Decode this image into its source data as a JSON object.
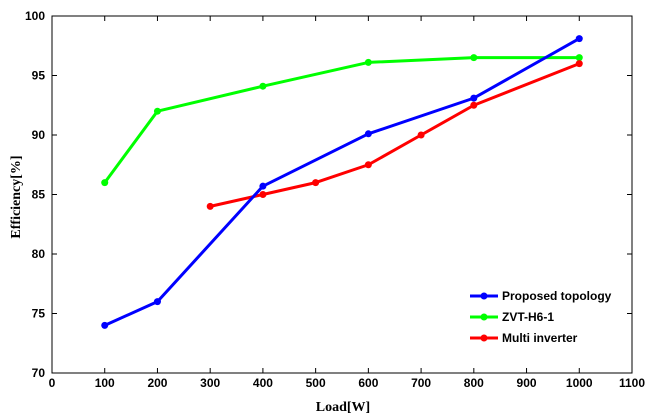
{
  "chart_data": {
    "type": "line",
    "xlabel": "Load[W]",
    "ylabel": "Efficiency[%]",
    "xlim": [
      0,
      1100
    ],
    "ylim": [
      70,
      100
    ],
    "xticks": [
      0,
      100,
      200,
      300,
      400,
      500,
      600,
      700,
      800,
      900,
      1000,
      1100
    ],
    "yticks": [
      70,
      75,
      80,
      85,
      90,
      95,
      100
    ],
    "grid": false,
    "legend_position": "bottom-right",
    "series": [
      {
        "name": "Proposed topology",
        "color": "#0000ff",
        "x": [
          100,
          200,
          400,
          600,
          800,
          1000
        ],
        "y": [
          74.0,
          76.0,
          85.7,
          90.1,
          93.1,
          98.1
        ]
      },
      {
        "name": "ZVT-H6-1",
        "color": "#00ff00",
        "x": [
          100,
          200,
          400,
          600,
          800,
          1000
        ],
        "y": [
          86.0,
          92.0,
          94.1,
          96.1,
          96.5,
          96.5
        ]
      },
      {
        "name": "Multi inverter",
        "color": "#ff0000",
        "x": [
          300,
          400,
          500,
          600,
          700,
          800,
          1000
        ],
        "y": [
          84.0,
          85.0,
          86.0,
          87.5,
          90.0,
          92.5,
          96.0
        ]
      }
    ]
  }
}
